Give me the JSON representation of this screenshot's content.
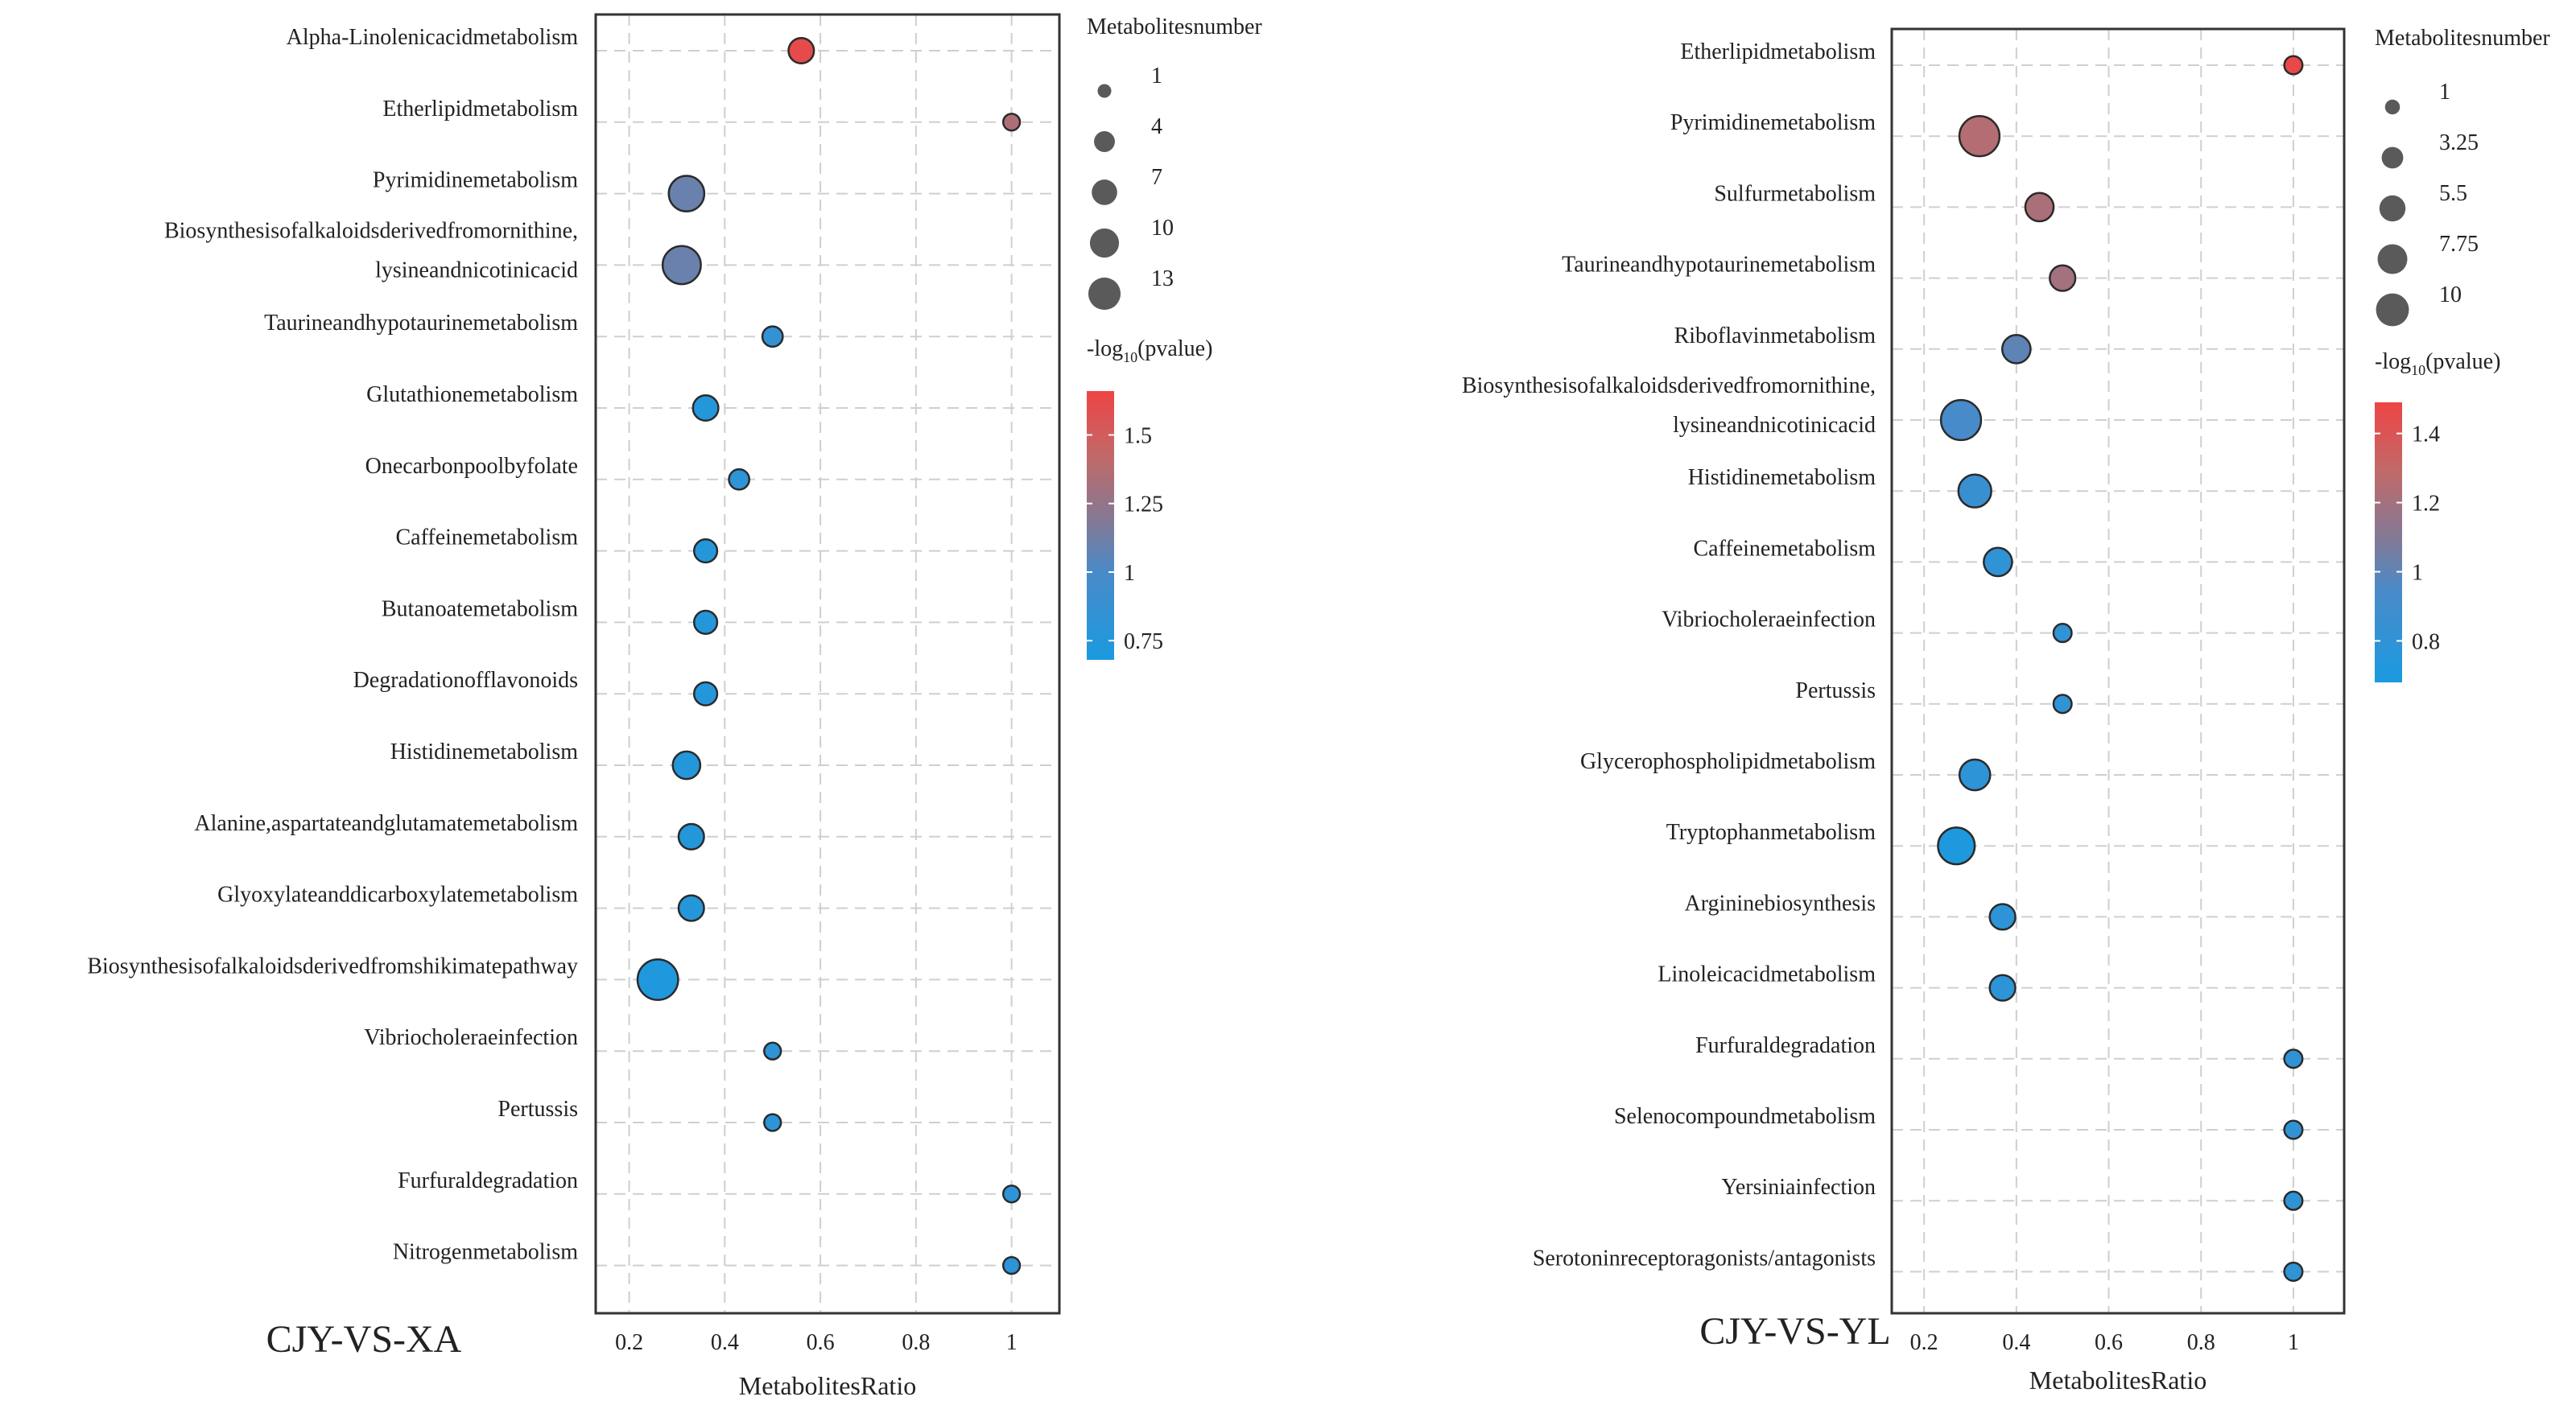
{
  "chart_data": [
    {
      "type": "scatter",
      "title": "CJY-VS-XA",
      "xlabel": "MetabolitesRatio",
      "ylabel": "",
      "xlim": [
        0.13,
        1.1
      ],
      "xticks": [
        "0.2",
        "0.4",
        "0.6",
        "0.8",
        "1"
      ],
      "grid": true,
      "size_legend_title": "Metabolitesnumber",
      "size_legend": [
        {
          "label": "1",
          "value": 1
        },
        {
          "label": "4",
          "value": 4
        },
        {
          "label": "7",
          "value": 7
        },
        {
          "label": "10",
          "value": 10
        },
        {
          "label": "13",
          "value": 13
        }
      ],
      "color_legend_title": "-log",
      "color_legend_sub": "10",
      "color_legend_tail": "(pvalue)",
      "color_range": [
        0.68,
        1.66
      ],
      "color_ticks": [
        {
          "label": "1.5",
          "value": 1.5
        },
        {
          "label": "1.25",
          "value": 1.25
        },
        {
          "label": "1",
          "value": 1.0
        },
        {
          "label": "0.75",
          "value": 0.75
        }
      ],
      "points": [
        {
          "pathway": "Alpha-Linolenicacidmetabolism",
          "lines": [
            "Alpha-Linolenicacidmetabolism"
          ],
          "ratio": 0.56,
          "count": 4,
          "neglog10p": 1.62
        },
        {
          "pathway": "Etherlipidmetabolism",
          "lines": [
            "Etherlipidmetabolism"
          ],
          "ratio": 1.0,
          "count": 1,
          "neglog10p": 1.35
        },
        {
          "pathway": "Pyrimidinemetabolism",
          "lines": [
            "Pyrimidinemetabolism"
          ],
          "ratio": 0.32,
          "count": 10,
          "neglog10p": 1.1
        },
        {
          "pathway": "Biosynthesisofalkaloidsderivedfromornithine,lysineandnicotinicacid",
          "lines": [
            "Biosynthesisofalkaloidsderivedfromornithine,",
            "lysineandnicotinicacid"
          ],
          "ratio": 0.31,
          "count": 12,
          "neglog10p": 1.1
        },
        {
          "pathway": "Taurineandhypotaurinemetabolism",
          "lines": [
            "Taurineandhypotaurinemetabolism"
          ],
          "ratio": 0.5,
          "count": 2,
          "neglog10p": 0.85
        },
        {
          "pathway": "Glutathionemetabolism",
          "lines": [
            "Glutathionemetabolism"
          ],
          "ratio": 0.36,
          "count": 4,
          "neglog10p": 0.75
        },
        {
          "pathway": "Onecarbonpoolbyfolate",
          "lines": [
            "Onecarbonpoolbyfolate"
          ],
          "ratio": 0.43,
          "count": 2,
          "neglog10p": 0.8
        },
        {
          "pathway": "Caffeinemetabolism",
          "lines": [
            "Caffeinemetabolism"
          ],
          "ratio": 0.36,
          "count": 3,
          "neglog10p": 0.75
        },
        {
          "pathway": "Butanoatemetabolism",
          "lines": [
            "Butanoatemetabolism"
          ],
          "ratio": 0.36,
          "count": 3,
          "neglog10p": 0.75
        },
        {
          "pathway": "Degradationofflavonoids",
          "lines": [
            "Degradationofflavonoids"
          ],
          "ratio": 0.36,
          "count": 3,
          "neglog10p": 0.75
        },
        {
          "pathway": "Histidinemetabolism",
          "lines": [
            "Histidinemetabolism"
          ],
          "ratio": 0.32,
          "count": 5,
          "neglog10p": 0.75
        },
        {
          "pathway": "Alanine,aspartateandglutamatemetabolism",
          "lines": [
            "Alanine,aspartateandglutamatemetabolism"
          ],
          "ratio": 0.33,
          "count": 4,
          "neglog10p": 0.75
        },
        {
          "pathway": "Glyoxylateanddicarboxylatemetabolism",
          "lines": [
            "Glyoxylateanddicarboxylatemetabolism"
          ],
          "ratio": 0.33,
          "count": 4,
          "neglog10p": 0.75
        },
        {
          "pathway": "Biosynthesisofalkaloidsderivedfromshikimatepathway",
          "lines": [
            "Biosynthesisofalkaloidsderivedfromshikimatepathway"
          ],
          "ratio": 0.26,
          "count": 14,
          "neglog10p": 0.72
        },
        {
          "pathway": "Vibriocholeraeinfection",
          "lines": [
            "Vibriocholeraeinfection"
          ],
          "ratio": 0.5,
          "count": 1,
          "neglog10p": 0.8
        },
        {
          "pathway": "Pertussis",
          "lines": [
            "Pertussis"
          ],
          "ratio": 0.5,
          "count": 1,
          "neglog10p": 0.8
        },
        {
          "pathway": "Furfuraldegradation",
          "lines": [
            "Furfuraldegradation"
          ],
          "ratio": 1.0,
          "count": 1,
          "neglog10p": 0.8
        },
        {
          "pathway": "Nitrogenmetabolism",
          "lines": [
            "Nitrogenmetabolism"
          ],
          "ratio": 1.0,
          "count": 1,
          "neglog10p": 0.8
        }
      ]
    },
    {
      "type": "scatter",
      "title": "CJY-VS-YL",
      "xlabel": "MetabolitesRatio",
      "ylabel": "",
      "xlim": [
        0.13,
        1.11
      ],
      "xticks": [
        "0.2",
        "0.4",
        "0.6",
        "0.8",
        "1"
      ],
      "grid": true,
      "size_legend_title": "Metabolitesnumber",
      "size_legend": [
        {
          "label": "1",
          "value": 1
        },
        {
          "label": "3.25",
          "value": 3.25
        },
        {
          "label": "5.5",
          "value": 5.5
        },
        {
          "label": "7.75",
          "value": 7.75
        },
        {
          "label": "10",
          "value": 10
        }
      ],
      "color_legend_title": "-log",
      "color_legend_sub": "10",
      "color_legend_tail": "(pvalue)",
      "color_range": [
        0.68,
        1.49
      ],
      "color_ticks": [
        {
          "label": "1.4",
          "value": 1.4
        },
        {
          "label": "1.2",
          "value": 1.2
        },
        {
          "label": "1",
          "value": 1.0
        },
        {
          "label": "0.8",
          "value": 0.8
        }
      ],
      "points": [
        {
          "pathway": "Etherlipidmetabolism",
          "lines": [
            "Etherlipidmetabolism"
          ],
          "ratio": 1.0,
          "count": 1,
          "neglog10p": 1.47
        },
        {
          "pathway": "Pyrimidinemetabolism",
          "lines": [
            "Pyrimidinemetabolism"
          ],
          "ratio": 0.32,
          "count": 10,
          "neglog10p": 1.25
        },
        {
          "pathway": "Sulfurmetabolism",
          "lines": [
            "Sulfurmetabolism"
          ],
          "ratio": 0.45,
          "count": 4,
          "neglog10p": 1.22
        },
        {
          "pathway": "Taurineandhypotaurinemetabolism",
          "lines": [
            "Taurineandhypotaurinemetabolism"
          ],
          "ratio": 0.5,
          "count": 3,
          "neglog10p": 1.2
        },
        {
          "pathway": "Riboflavinmetabolism",
          "lines": [
            "Riboflavinmetabolism"
          ],
          "ratio": 0.4,
          "count": 4,
          "neglog10p": 1.0
        },
        {
          "pathway": "Biosynthesisofalkaloidsderivedfromornithine,lysineandnicotinicacid",
          "lines": [
            "Biosynthesisofalkaloidsderivedfromornithine,",
            "lysineandnicotinicacid"
          ],
          "ratio": 0.28,
          "count": 10,
          "neglog10p": 0.93
        },
        {
          "pathway": "Histidinemetabolism",
          "lines": [
            "Histidinemetabolism"
          ],
          "ratio": 0.31,
          "count": 6,
          "neglog10p": 0.85
        },
        {
          "pathway": "Caffeinemetabolism",
          "lines": [
            "Caffeinemetabolism"
          ],
          "ratio": 0.36,
          "count": 4,
          "neglog10p": 0.8
        },
        {
          "pathway": "Vibriocholeraeinfection",
          "lines": [
            "Vibriocholeraeinfection"
          ],
          "ratio": 0.5,
          "count": 1,
          "neglog10p": 0.8
        },
        {
          "pathway": "Pertussis",
          "lines": [
            "Pertussis"
          ],
          "ratio": 0.5,
          "count": 1,
          "neglog10p": 0.8
        },
        {
          "pathway": "Glycerophospholipidmetabolism",
          "lines": [
            "Glycerophospholipidmetabolism"
          ],
          "ratio": 0.31,
          "count": 5,
          "neglog10p": 0.78
        },
        {
          "pathway": "Tryptophanmetabolism",
          "lines": [
            "Tryptophanmetabolism"
          ],
          "ratio": 0.27,
          "count": 8,
          "neglog10p": 0.7
        },
        {
          "pathway": "Argininebiosynthesis",
          "lines": [
            "Argininebiosynthesis"
          ],
          "ratio": 0.37,
          "count": 3,
          "neglog10p": 0.78
        },
        {
          "pathway": "Linoleicacidmetabolism",
          "lines": [
            "Linoleicacidmetabolism"
          ],
          "ratio": 0.37,
          "count": 3,
          "neglog10p": 0.78
        },
        {
          "pathway": "Furfuraldegradation",
          "lines": [
            "Furfuraldegradation"
          ],
          "ratio": 1.0,
          "count": 1,
          "neglog10p": 0.8
        },
        {
          "pathway": "Selenocompoundmetabolism",
          "lines": [
            "Selenocompoundmetabolism"
          ],
          "ratio": 1.0,
          "count": 1,
          "neglog10p": 0.8
        },
        {
          "pathway": "Yersiniainfection",
          "lines": [
            "Yersiniainfection"
          ],
          "ratio": 1.0,
          "count": 1,
          "neglog10p": 0.8
        },
        {
          "pathway": "Serotoninreceptoragonists/antagonists",
          "lines": [
            "Serotoninreceptoragonists/antagonists"
          ],
          "ratio": 1.0,
          "count": 1,
          "neglog10p": 0.8
        }
      ]
    }
  ]
}
